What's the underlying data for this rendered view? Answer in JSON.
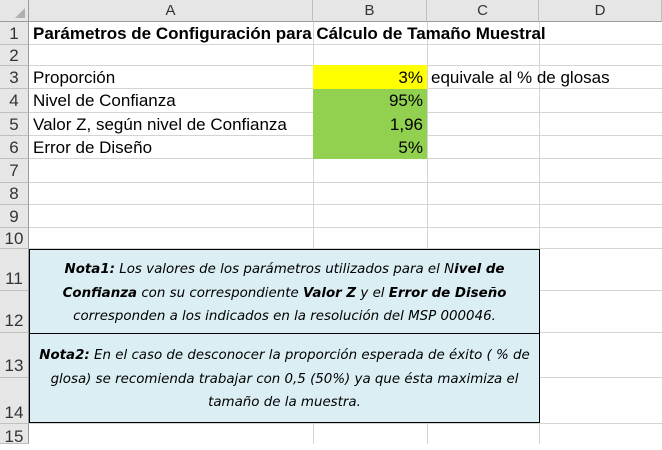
{
  "sheet": {
    "columns": [
      "A",
      "B",
      "C",
      "D"
    ],
    "rows": [
      "1",
      "2",
      "3",
      "4",
      "5",
      "6",
      "7",
      "8",
      "9",
      "10",
      "11",
      "12",
      "13",
      "14",
      "15"
    ]
  },
  "cells": {
    "title": "Parámetros de Configuración para Cálculo de Tamaño Muestral",
    "rows": [
      {
        "label": "Proporción",
        "value": "3%",
        "note": "equivale al % de glosas"
      },
      {
        "label": "Nivel de Confianza",
        "value": "95%"
      },
      {
        "label": "Valor Z, según nivel de Confianza",
        "value": "1,96"
      },
      {
        "label": "Error de Diseño",
        "value": "5%"
      }
    ]
  },
  "notes": {
    "nota1": {
      "heading": "Nota1:",
      "t1": " Los valores de los parámetros utilizados para el N",
      "b1": "ivel de Confianza",
      "t2": " con su correspondiente ",
      "b2": "Valor Z",
      "t3": " y el ",
      "b3": "Error de Diseño",
      "t4": " corresponden a los indicados en la resolución del MSP 000046."
    },
    "nota2": {
      "heading": "Nota2:",
      "text": " En el caso de desconocer la proporción esperada de éxito ( % de glosa) se recomienda trabajar con 0,5 (50%) ya que ésta maximiza el tamaño de la muestra."
    }
  },
  "colors": {
    "yellow_fill": "#ffff00",
    "green_fill": "#92d050",
    "note_fill": "#daeef3"
  }
}
